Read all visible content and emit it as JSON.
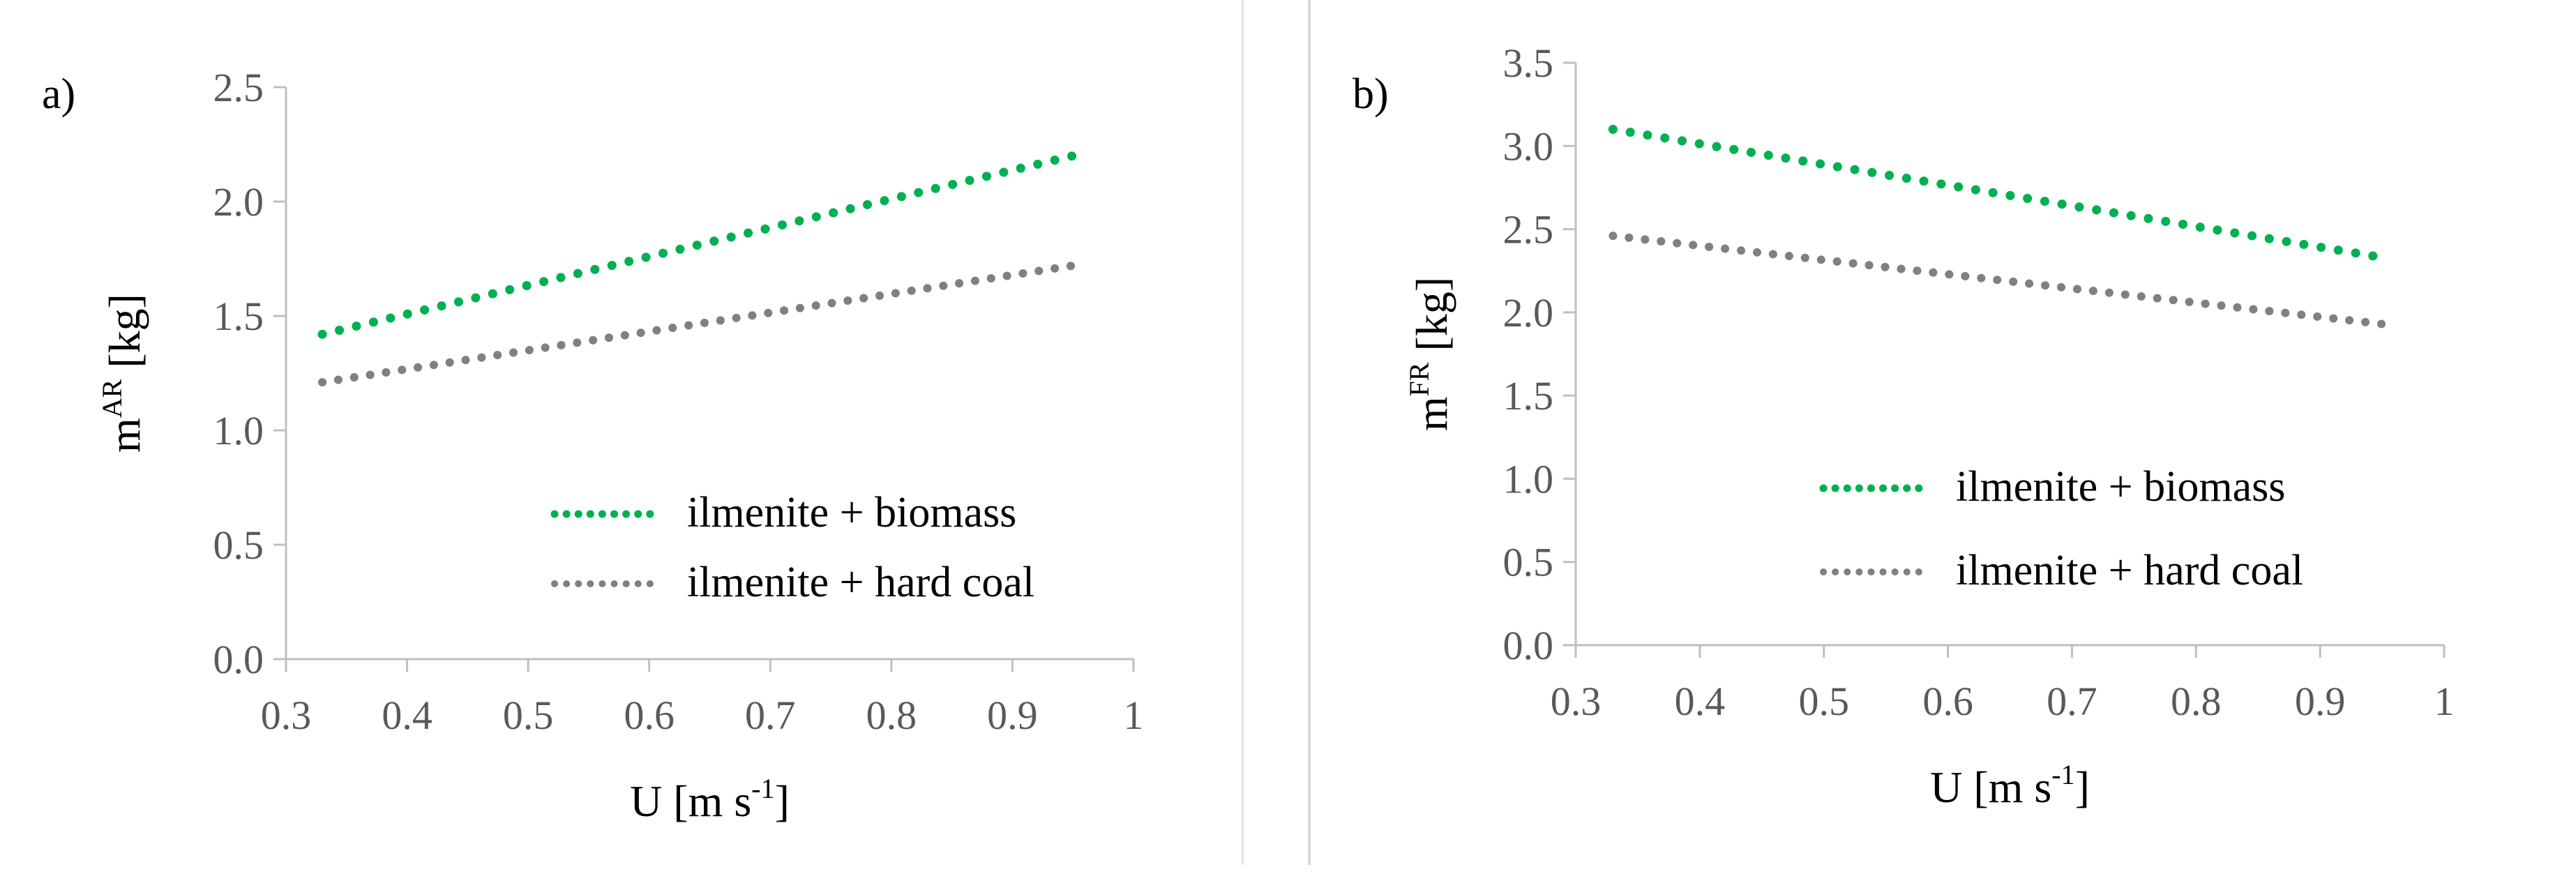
{
  "colors": {
    "biomass": "#00b050",
    "hard_coal": "#808080",
    "axis": "#bfbfbf",
    "tick_text": "#595959"
  },
  "chart_data": [
    {
      "type": "line",
      "panel_label": "a)",
      "xlabel": "U [m s",
      "xlabel_sup": "-1",
      "xlabel_end": "]",
      "ylabel": "m",
      "ylabel_sup": "AR",
      "ylabel_end": " [kg]",
      "xlim": [
        0.3,
        1.0
      ],
      "ylim": [
        0.0,
        2.5
      ],
      "x_ticks": [
        "0.3",
        "0.4",
        "0.5",
        "0.6",
        "0.7",
        "0.8",
        "0.9",
        "1"
      ],
      "y_ticks": [
        "0.0",
        "0.5",
        "1.0",
        "1.5",
        "2.0",
        "2.5"
      ],
      "legend_position": "bottom-right",
      "series": [
        {
          "name": "ilmenite + biomass",
          "x": [
            0.33,
            0.95
          ],
          "y": [
            1.42,
            2.2
          ]
        },
        {
          "name": "ilmenite + hard coal",
          "x": [
            0.33,
            0.95
          ],
          "y": [
            1.21,
            1.72
          ]
        }
      ]
    },
    {
      "type": "line",
      "panel_label": "b)",
      "xlabel": "U [m s",
      "xlabel_sup": "-1",
      "xlabel_end": "]",
      "ylabel": "m",
      "ylabel_sup": "FR",
      "ylabel_end": " [kg]",
      "xlim": [
        0.3,
        1.0
      ],
      "ylim": [
        0.0,
        3.5
      ],
      "x_ticks": [
        "0.3",
        "0.4",
        "0.5",
        "0.6",
        "0.7",
        "0.8",
        "0.9",
        "1"
      ],
      "y_ticks": [
        "0.0",
        "0.5",
        "1.0",
        "1.5",
        "2.0",
        "2.5",
        "3.0",
        "3.5"
      ],
      "legend_position": "bottom-right",
      "series": [
        {
          "name": "ilmenite + biomass",
          "x": [
            0.33,
            0.95
          ],
          "y": [
            3.1,
            2.33
          ]
        },
        {
          "name": "ilmenite + hard coal",
          "x": [
            0.33,
            0.95
          ],
          "y": [
            2.46,
            1.93
          ]
        }
      ]
    }
  ]
}
